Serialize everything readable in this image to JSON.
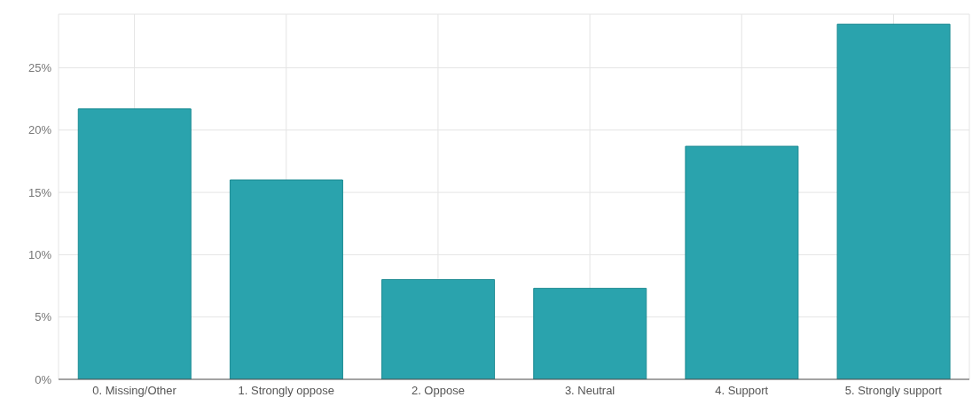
{
  "chart_data": {
    "type": "bar",
    "categories": [
      "0. Missing/Other",
      "1. Strongly oppose",
      "2. Oppose",
      "3. Neutral",
      "4. Support",
      "5. Strongly support"
    ],
    "values": [
      21.7,
      16.0,
      8.0,
      7.3,
      18.7,
      28.5
    ],
    "color": "#2aa3ad",
    "ylim": [
      0,
      29.3
    ],
    "yticks": [
      {
        "value": 0,
        "label": "0%"
      },
      {
        "value": 5,
        "label": "5%"
      },
      {
        "value": 10,
        "label": "10%"
      },
      {
        "value": 15,
        "label": "15%"
      },
      {
        "value": 20,
        "label": "20%"
      },
      {
        "value": 25,
        "label": "25%"
      }
    ],
    "grid": true
  }
}
